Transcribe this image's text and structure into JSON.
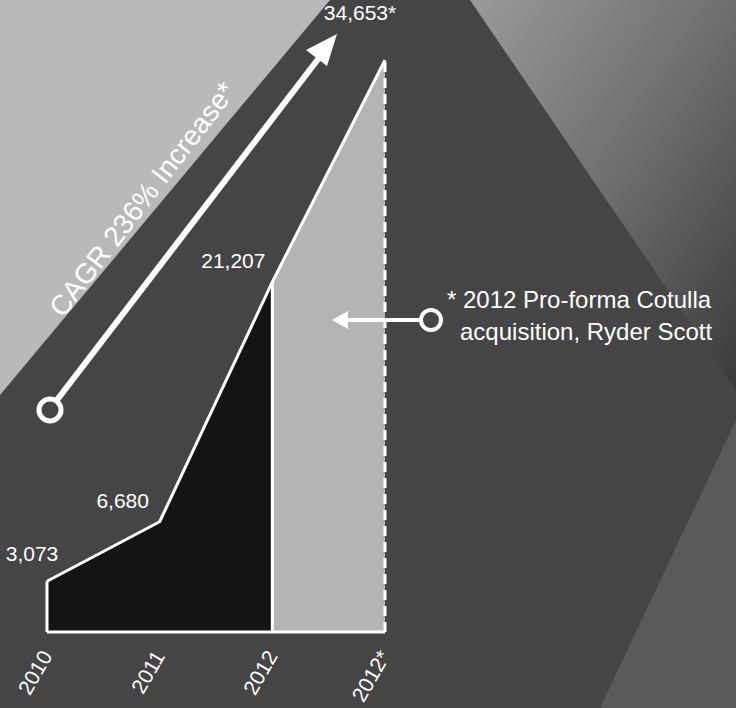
{
  "chart_data": {
    "type": "area",
    "categories": [
      "2010",
      "2011",
      "2012",
      "2012*"
    ],
    "values": [
      3073,
      6680,
      21207,
      34653
    ],
    "value_labels": [
      "3,073",
      "6,680",
      "21,207",
      "34,653*"
    ],
    "data_labels": true,
    "colors": [
      "#141414",
      "#141414",
      "#141414",
      "#b4b4b4"
    ],
    "tick_labels": "x",
    "grid": false,
    "annotations": [
      "CAGR 236% Increase*",
      "* 2012 Pro-forma Cotulla\nacquisition, Ryder Scott"
    ]
  }
}
